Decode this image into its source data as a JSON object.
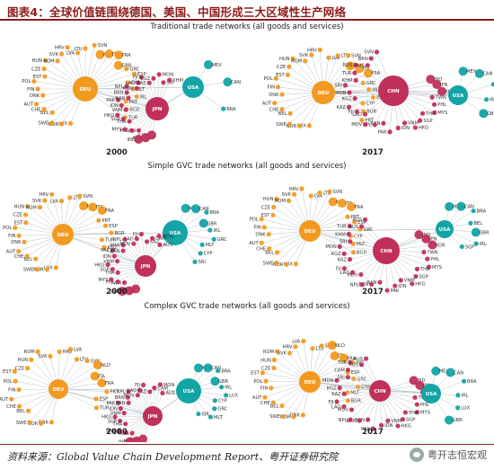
{
  "title": "图表4：全球价值链围绕德国、美国、中国形成三大区域性生产网络",
  "source": "资料来源：Global Value Chain Development Report、粤开证券研究院",
  "watermark": "粤开志恒宏观",
  "colors": {
    "deu": "#f29a1f",
    "usa": "#13a4a6",
    "asia": "#c0305a",
    "brand": "#8b1c1c",
    "edge": "#b9c4cc"
  },
  "rows": [
    {
      "title": "Traditional trade networks (all goods and services)",
      "panels": [
        {
          "year": "2000",
          "hubs": [
            {
              "name": "DEU",
              "group": "deu",
              "children": [
                "LUX",
                "NOR",
                "SWE",
                "BEL",
                "CHE",
                "AUT",
                "DNK",
                "FIN",
                "POL",
                "EST",
                "CZE",
                "HUN",
                "ROM",
                "SVK",
                "HRV",
                "LVA",
                "LTU",
                "SVN",
                "NLD",
                "ITA",
                "FRA",
                "GBR",
                "GRC",
                "ESP",
                "CYP",
                "MLT",
                "IRL",
                "PRT",
                "BGR",
                "TUR"
              ]
            },
            {
              "name": "USA",
              "group": "usa",
              "children": [
                "MEX",
                "CAN",
                "BRA"
              ]
            },
            {
              "name": "JPN",
              "group": "asia",
              "children": [
                "CHN",
                "KOR",
                "IND",
                "TWN",
                "PHL",
                "MYS",
                "THA",
                "SGP",
                "HKG",
                "VNM",
                "IDN",
                "PAK",
                "BAN",
                "BRN",
                "NPL",
                "MDV",
                "LAO",
                "FJI",
                "KAZ",
                "KGZ",
                "MON",
                "SRI",
                "KHM"
              ]
            }
          ]
        },
        {
          "year": "2017",
          "hubs": [
            {
              "name": "DEU",
              "group": "deu",
              "children": [
                "LUX",
                "NOR",
                "SWE",
                "BEL",
                "CHE",
                "AUT",
                "DNK",
                "FIN",
                "POL",
                "EST",
                "CZE",
                "HUN",
                "ROM",
                "SVK",
                "HRV",
                "LVA",
                "LTU",
                "SVN",
                "NLD",
                "ITA",
                "FRA",
                "GRC",
                "MLT",
                "ESP",
                "CYP",
                "BGR",
                "PRT"
              ]
            },
            {
              "name": "CHN",
              "group": "asia",
              "children": [
                "IND",
                "JPN",
                "KOR",
                "TWN",
                "PHL",
                "MYS",
                "THA",
                "SGP",
                "HKG",
                "VNM",
                "IDN",
                "PAK",
                "BAN",
                "NPL",
                "MDV",
                "LAO",
                "FJI",
                "KAZ",
                "KGZ",
                "MON",
                "SRI",
                "KHM",
                "TUR",
                "RUS",
                "AUS",
                "BRN",
                "SVN"
              ]
            },
            {
              "name": "USA",
              "group": "usa",
              "children": [
                "MEX",
                "CAN",
                "BRA",
                "IRL",
                "GBR"
              ]
            }
          ]
        }
      ]
    },
    {
      "title": "Simple GVC trade networks (all goods and services)",
      "panels": [
        {
          "year": "2000",
          "hubs": [
            {
              "name": "DEU",
              "group": "deu",
              "children": [
                "LUX",
                "NOR",
                "SWE",
                "BEL",
                "CHE",
                "AUT",
                "DNK",
                "FIN",
                "POL",
                "EST",
                "CZE",
                "HUN",
                "ROM",
                "SVK",
                "HRV",
                "LVA",
                "LTU",
                "SVN",
                "NLD",
                "ITA",
                "FRA",
                "PRT",
                "ESP",
                "BGR",
                "TUR",
                "KGZ"
              ]
            },
            {
              "name": "USA",
              "group": "usa",
              "children": [
                "MEX",
                "CAN",
                "BRA",
                "GBR",
                "IRL",
                "GRC",
                "MLT",
                "CYP",
                "SRI"
              ]
            },
            {
              "name": "JPN",
              "group": "asia",
              "children": [
                "CHN",
                "KOR",
                "IND",
                "TWN",
                "PHL",
                "MYS",
                "THA",
                "SGP",
                "HKG",
                "VNM",
                "IDN",
                "PAK",
                "BAN",
                "BRN",
                "NPL",
                "MDV",
                "LAO",
                "FJI",
                "KAZ",
                "CAM",
                "MON",
                "AUS"
              ]
            }
          ]
        },
        {
          "year": "2017",
          "hubs": [
            {
              "name": "DEU",
              "group": "deu",
              "children": [
                "LUX",
                "NOR",
                "SWE",
                "BEL",
                "CHE",
                "AUT",
                "DNK",
                "FIN",
                "POL",
                "EST",
                "CZE",
                "HUN",
                "ROM",
                "SVK",
                "HRV",
                "LVA",
                "LTU",
                "SVN",
                "NLD",
                "ITA",
                "FRA",
                "PRT",
                "ESP",
                "GRC",
                "CYP",
                "MLT",
                "BGR"
              ]
            },
            {
              "name": "CHN",
              "group": "asia",
              "children": [
                "IND",
                "JPN",
                "KOR",
                "TWN",
                "PHL",
                "MYS",
                "THA",
                "SGP",
                "HKG",
                "VNM",
                "IDN",
                "PAK",
                "BAN",
                "BRN",
                "NPL",
                "MDV",
                "LAO",
                "FJI",
                "KAZ",
                "KGZ",
                "MON",
                "SRI",
                "KHM",
                "TUR",
                "RUS",
                "AUS"
              ]
            },
            {
              "name": "USA",
              "group": "usa",
              "children": [
                "MEX",
                "CAN",
                "BRA",
                "BEL",
                "GBR",
                "IRL",
                "SGP"
              ]
            }
          ]
        }
      ]
    },
    {
      "title": "Complex GVC trade networks (all goods and services)",
      "panels": [
        {
          "year": "2000",
          "hubs": [
            {
              "name": "DEU",
              "group": "deu",
              "children": [
                "DNK",
                "NOR",
                "SWE",
                "BEL",
                "CHE",
                "AUT",
                "FIN",
                "POL",
                "EST",
                "CZE",
                "HUN",
                "ROM",
                "SVK",
                "HRV",
                "LVA",
                "LTU",
                "SVN",
                "NLD",
                "ITA",
                "FRA",
                "PRT",
                "ESP",
                "TUR"
              ]
            },
            {
              "name": "USA",
              "group": "usa",
              "children": [
                "MEX",
                "CAN",
                "BRA",
                "GBR",
                "IRL",
                "LUX",
                "CYP",
                "GRC",
                "MLT",
                "ISR"
              ]
            },
            {
              "name": "JPN",
              "group": "asia",
              "children": [
                "CHN",
                "KOR",
                "IND",
                "TWN",
                "PHL",
                "MYS",
                "THA",
                "SGP",
                "HKG",
                "VNM",
                "IDN",
                "PAK",
                "BAN",
                "BRN",
                "NPL",
                "MDV",
                "LAO",
                "FJI",
                "KAZ",
                "CAM",
                "MON",
                "AUS"
              ]
            }
          ]
        },
        {
          "year": "2017",
          "hubs": [
            {
              "name": "DEU",
              "group": "deu",
              "children": [
                "DNK",
                "NOR",
                "SWE",
                "BEL",
                "CHE",
                "AUT",
                "FIN",
                "POL",
                "EST",
                "CZE",
                "HUN",
                "ROM",
                "SVK",
                "HRV",
                "LVA",
                "LTU",
                "SVN",
                "NLD",
                "ITA",
                "FRA",
                "PRT",
                "ESP",
                "GRC",
                "CYP",
                "MLT",
                "BGR"
              ]
            },
            {
              "name": "CHN",
              "group": "asia",
              "children": [
                "IND",
                "JPN",
                "KOR",
                "TWN",
                "PHL",
                "MYS",
                "THA",
                "SGP",
                "HKG",
                "VNM",
                "IDN",
                "PAK",
                "BAN",
                "BRN",
                "NPL",
                "MDV",
                "LAO",
                "FJI",
                "KAZ",
                "KGZ",
                "MON",
                "SRI",
                "CAM",
                "TUR",
                "RUS",
                "AUS"
              ]
            },
            {
              "name": "USA",
              "group": "usa",
              "children": [
                "MEX",
                "CAN",
                "BRA",
                "IRL",
                "LUX",
                "GBR"
              ]
            }
          ]
        }
      ]
    }
  ]
}
